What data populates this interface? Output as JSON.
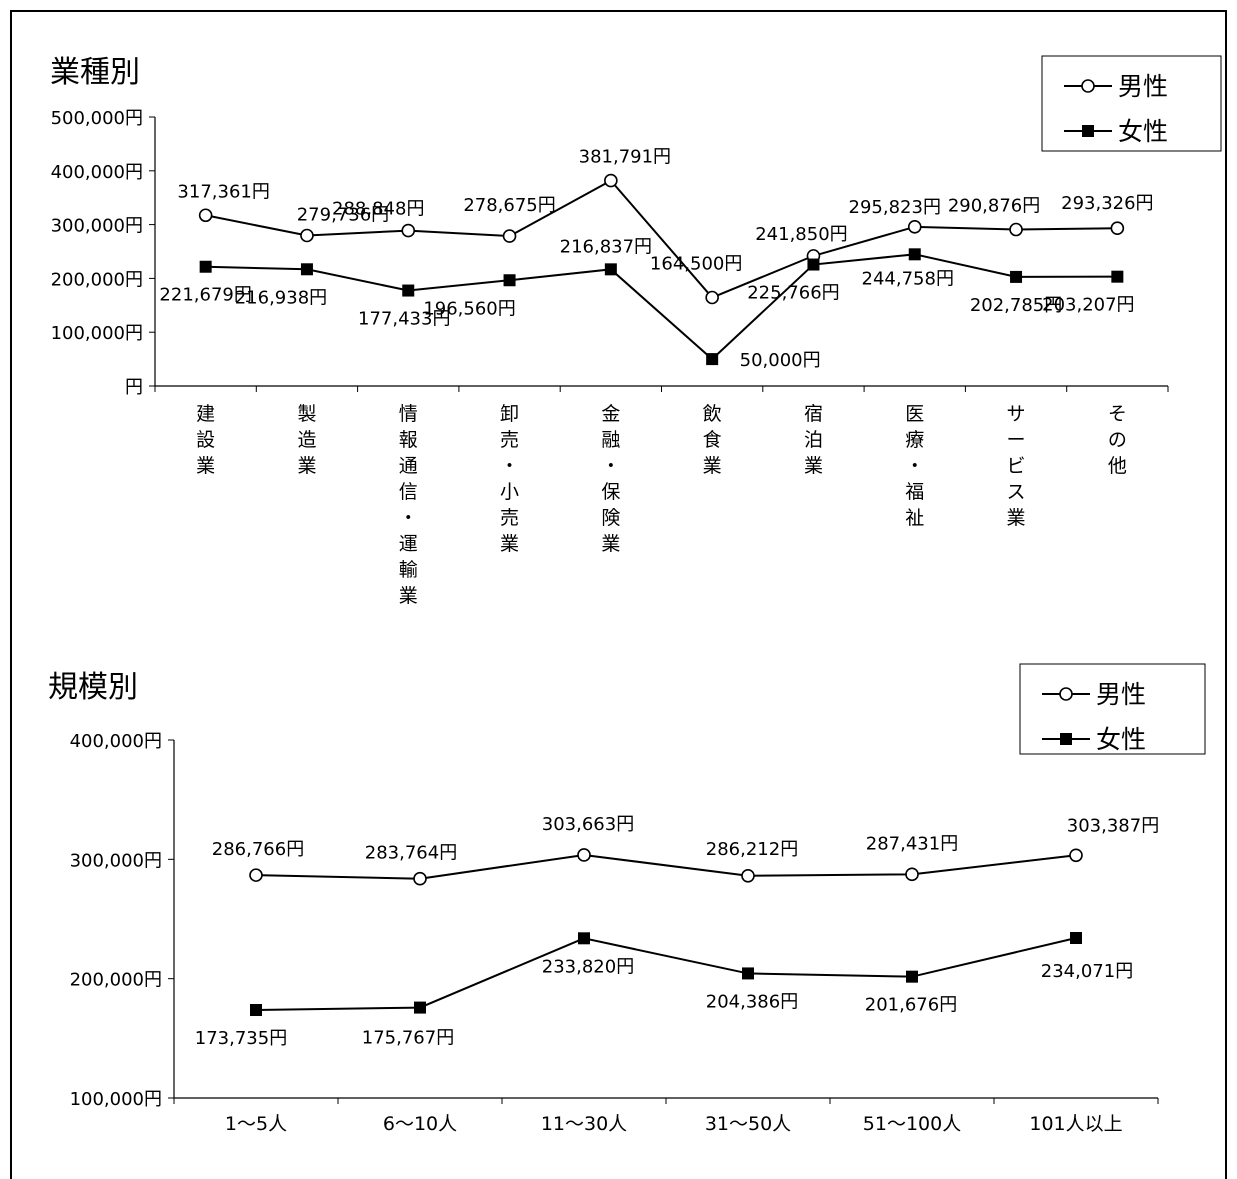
{
  "chart_data": [
    {
      "type": "line",
      "title": "業種別",
      "categories": [
        "建設業",
        "製造業",
        "情報通信・運輸業",
        "卸売・小売業",
        "金融・保険業",
        "飲食業",
        "宿泊業",
        "医療・福祉",
        "サービス業",
        "その他"
      ],
      "series": [
        {
          "name": "男性",
          "values": [
            317361,
            279736,
            288848,
            278675,
            381791,
            164500,
            241850,
            295823,
            290876,
            293326
          ],
          "labels": [
            "317,361円",
            "279,736円",
            "288,848円",
            "278,675円",
            "381,791円",
            "164,500円",
            "241,850円",
            "295,823円",
            "290,876円",
            "293,326円"
          ],
          "marker": "circle-open"
        },
        {
          "name": "女性",
          "values": [
            221679,
            216938,
            177433,
            196560,
            216837,
            50000,
            225766,
            244758,
            202785,
            203207
          ],
          "labels": [
            "221,679円",
            "216,938円",
            "177,433円",
            "196,560円",
            "216,837円",
            "50,000円",
            "225,766円",
            "244,758円",
            "202,785円",
            "203,207円"
          ],
          "marker": "square-filled"
        }
      ],
      "ylim": [
        0,
        500000
      ],
      "yticks": [
        0,
        100000,
        200000,
        300000,
        400000,
        500000
      ],
      "ytick_labels": [
        "円",
        "100,000円",
        "200,000円",
        "300,000円",
        "400,000円",
        "500,000円"
      ],
      "grid": false,
      "legend": "top-right"
    },
    {
      "type": "line",
      "title": "規模別",
      "categories": [
        "1～5人",
        "6～10人",
        "11～30人",
        "31～50人",
        "51～100人",
        "101人以上"
      ],
      "series": [
        {
          "name": "男性",
          "values": [
            286766,
            283764,
            303663,
            286212,
            287431,
            303387
          ],
          "labels": [
            "286,766円",
            "283,764円",
            "303,663円",
            "286,212円",
            "287,431円",
            "303,387円"
          ],
          "marker": "circle-open"
        },
        {
          "name": "女性",
          "values": [
            173735,
            175767,
            233820,
            204386,
            201676,
            234071
          ],
          "labels": [
            "173,735円",
            "175,767円",
            "233,820円",
            "204,386円",
            "201,676円",
            "234,071円"
          ],
          "marker": "square-filled"
        }
      ],
      "ylim": [
        100000,
        400000
      ],
      "yticks": [
        100000,
        200000,
        300000,
        400000
      ],
      "ytick_labels": [
        "100,000円",
        "200,000円",
        "300,000円",
        "400,000円"
      ],
      "grid": false,
      "legend": "top-right"
    }
  ]
}
